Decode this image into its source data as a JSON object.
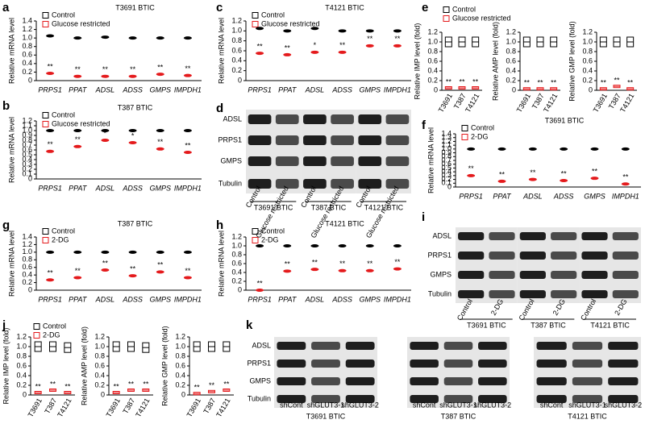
{
  "chart_data": [
    {
      "panel": "a",
      "type": "dot",
      "title": "T3691 BTIC",
      "y_label": "Relative mRNA level",
      "categories": [
        "PRPS1",
        "PPAT",
        "ADSL",
        "ADSS",
        "GMPS",
        "IMPDH1"
      ],
      "series": [
        {
          "name": "Control",
          "color": "#000000",
          "values": [
            1.05,
            1.0,
            1.02,
            1.0,
            1.0,
            1.0
          ]
        },
        {
          "name": "Glucose restricted",
          "color": "#e41a1c",
          "values": [
            0.17,
            0.1,
            0.1,
            0.1,
            0.15,
            0.12
          ]
        }
      ],
      "significance": [
        "**",
        "**",
        "**",
        "**",
        "**",
        "**"
      ],
      "ylim": [
        0,
        1.4
      ],
      "yticks": [
        0,
        0.2,
        0.4,
        0.6,
        0.8,
        {
          "value": 1,
          "label": "1.0"
        },
        1.2,
        1.4
      ]
    },
    {
      "panel": "b",
      "type": "dot",
      "title": "T387 BTIC",
      "y_label": "Relative mRNA level",
      "categories": [
        "PRPS1",
        "PPAT",
        "ADSL",
        "ADSS",
        "GMPS",
        "IMPDH1"
      ],
      "series": [
        {
          "name": "Control",
          "color": "#000000",
          "values": [
            1.0,
            1.0,
            1.0,
            1.0,
            1.0,
            1.0
          ]
        },
        {
          "name": "Glucose restricted",
          "color": "#e41a1c",
          "values": [
            0.57,
            0.67,
            0.8,
            0.75,
            0.62,
            0.55
          ]
        }
      ],
      "significance": [
        "**",
        "**",
        "*",
        "*",
        "**",
        "**"
      ],
      "ylim": [
        0,
        1.2
      ],
      "yticks": [
        0,
        0.1,
        0.2,
        0.3,
        0.4,
        0.5,
        0.6,
        0.7,
        0.8,
        0.9,
        {
          "value": 1,
          "label": "1.0"
        },
        1.1,
        1.2
      ]
    },
    {
      "panel": "c",
      "type": "dot",
      "title": "T4121 BTIC",
      "y_label": "Relative mRNA level",
      "categories": [
        "PRPS1",
        "PPAT",
        "ADSL",
        "ADSS",
        "GMPS",
        "IMPDH1"
      ],
      "series": [
        {
          "name": "Control",
          "color": "#000000",
          "values": [
            1.05,
            1.0,
            1.05,
            1.0,
            1.0,
            1.0
          ]
        },
        {
          "name": "Glucose restricted",
          "color": "#e41a1c",
          "values": [
            0.55,
            0.52,
            0.57,
            0.57,
            0.7,
            0.7
          ]
        }
      ],
      "significance": [
        "**",
        "**",
        "*",
        "**",
        "**",
        "**"
      ],
      "ylim": [
        0,
        1.2
      ],
      "yticks": [
        0,
        0.2,
        0.4,
        0.6,
        0.8,
        {
          "value": 1,
          "label": "1.0"
        },
        1.2
      ]
    },
    {
      "panel": "f",
      "type": "dot",
      "title": "T3691 BTIC",
      "y_label": "Relative mRNA level",
      "categories": [
        "PRPS1",
        "PPAT",
        "ADSL",
        "ADSS",
        "GMPS",
        "IMPDH1"
      ],
      "series": [
        {
          "name": "Control",
          "color": "#000000",
          "values": [
            1.0,
            1.0,
            1.0,
            1.0,
            1.0,
            1.0
          ]
        },
        {
          "name": "2-DG",
          "color": "#e41a1c",
          "values": [
            0.3,
            0.15,
            0.2,
            0.17,
            0.23,
            0.08
          ]
        }
      ],
      "significance": [
        "**",
        "**",
        "**",
        "**",
        "**",
        "**"
      ],
      "ylim": [
        0,
        1.4
      ],
      "yticks": [
        0,
        0.1,
        0.2,
        0.3,
        0.4,
        0.5,
        0.6,
        0.7,
        0.8,
        0.9,
        {
          "value": 1,
          "label": "1.0"
        },
        1.1,
        1.2,
        1.3,
        1.4
      ]
    },
    {
      "panel": "g",
      "type": "dot",
      "title": "T387 BTIC",
      "y_label": "Relative mRNA level",
      "categories": [
        "PRPS1",
        "PPAT",
        "ADSL",
        "ADSS",
        "GMPS",
        "IMPDH1"
      ],
      "series": [
        {
          "name": "Control",
          "color": "#000000",
          "values": [
            1.0,
            1.0,
            1.0,
            1.0,
            1.0,
            1.0
          ]
        },
        {
          "name": "2-DG",
          "color": "#e41a1c",
          "values": [
            0.27,
            0.33,
            0.53,
            0.38,
            0.48,
            0.33
          ]
        }
      ],
      "significance": [
        "**",
        "**",
        "**",
        "**",
        "**",
        "**"
      ],
      "ylim": [
        0,
        1.4
      ],
      "yticks": [
        0,
        0.2,
        0.4,
        0.6,
        0.8,
        {
          "value": 1,
          "label": "1.0"
        },
        1.2,
        1.4
      ]
    },
    {
      "panel": "h",
      "type": "dot",
      "title": "T4121 BTIC",
      "y_label": "Relative mRNA level",
      "categories": [
        "PRPS1",
        "PPAT",
        "ADSL",
        "ADSS",
        "GMPS",
        "IMPDH1"
      ],
      "series": [
        {
          "name": "Control",
          "color": "#000000",
          "values": [
            1.0,
            1.0,
            1.0,
            1.0,
            1.0,
            1.0
          ]
        },
        {
          "name": "2-DG",
          "color": "#e41a1c",
          "values": [
            0.0,
            0.43,
            0.47,
            0.44,
            0.44,
            0.48
          ]
        }
      ],
      "significance": [
        "**",
        "**",
        "**",
        "**",
        "**",
        "**"
      ],
      "ylim": [
        0,
        1.2
      ],
      "yticks": [
        0,
        0.2,
        0.4,
        0.6,
        0.8,
        {
          "value": 1,
          "label": "1.0"
        },
        1.2
      ]
    },
    {
      "panel": "e",
      "type": "box",
      "categories": [
        "T3691",
        "T387",
        "T4121"
      ],
      "series": [
        {
          "name": "Control",
          "color": "#000000"
        },
        {
          "name": "Glucose restricted",
          "color": "#e41a1c"
        }
      ],
      "plots": [
        {
          "y_label": "Relative IMP level (fold)",
          "series_values": [
            [
              1.0,
              1.0,
              1.0
            ],
            [
              0.05,
              0.05,
              0.05
            ]
          ],
          "significance": [
            "**",
            "**",
            "**"
          ]
        },
        {
          "y_label": "Relative AMP level (fold)",
          "series_values": [
            [
              1.0,
              1.0,
              1.0
            ],
            [
              0.03,
              0.03,
              0.03
            ]
          ],
          "significance": [
            "**",
            "**",
            "**"
          ]
        },
        {
          "y_label": "Relative GMP level (fold)",
          "series_values": [
            [
              1.0,
              1.0,
              1.0
            ],
            [
              0.03,
              0.08,
              0.03
            ]
          ],
          "significance": [
            "**",
            "**",
            "**"
          ]
        }
      ],
      "ylim": [
        0,
        1.2
      ],
      "yticks": [
        0,
        0.2,
        0.4,
        0.6,
        0.8,
        {
          "value": 1,
          "label": "1.0"
        },
        1.2
      ]
    },
    {
      "panel": "j",
      "type": "box",
      "categories": [
        "T3691",
        "T387",
        "T4121"
      ],
      "series": [
        {
          "name": "Control",
          "color": "#000000"
        },
        {
          "name": "2-DG",
          "color": "#e41a1c"
        }
      ],
      "plots": [
        {
          "y_label": "Relative IMP level (fold)",
          "series_values": [
            [
              1.0,
              1.0,
              0.98
            ],
            [
              0.05,
              0.1,
              0.05
            ]
          ],
          "significance": [
            "**",
            "**",
            "**"
          ]
        },
        {
          "y_label": "Relative AMP level (fold)",
          "series_values": [
            [
              1.0,
              1.0,
              0.98
            ],
            [
              0.05,
              0.1,
              0.1
            ]
          ],
          "significance": [
            "**",
            "**",
            "**"
          ]
        },
        {
          "y_label": "Relative GMP level (fold)",
          "series_values": [
            [
              1.0,
              1.0,
              1.0
            ],
            [
              0.03,
              0.07,
              0.1
            ]
          ],
          "significance": [
            "**",
            "**",
            "**"
          ]
        }
      ],
      "ylim": [
        0,
        1.2
      ],
      "yticks": [
        0,
        0.2,
        0.4,
        0.6,
        0.8,
        {
          "value": 1,
          "label": "1.0"
        },
        1.2
      ]
    }
  ],
  "blots": [
    {
      "panel": "d",
      "rows": [
        "ADSL",
        "PRPS1",
        "GMPS",
        "Tubulin"
      ],
      "lanes": [
        "Control",
        "Glucose restricted"
      ],
      "groups": [
        "T3691 BTIC",
        "T387 BTIC",
        "T4121 BTIC"
      ]
    },
    {
      "panel": "i",
      "rows": [
        "ADSL",
        "PRPS1",
        "GMPS",
        "Tubulin"
      ],
      "lanes": [
        "Control",
        "2-DG"
      ],
      "groups": [
        "T3691 BTIC",
        "T387 BTIC",
        "T4121 BTIC"
      ]
    },
    {
      "panel": "k",
      "rows": [
        "ADSL",
        "PRPS1",
        "GMPS",
        "Tubulin"
      ],
      "lanes": [
        "shCont",
        "shGLUT3-1",
        "shGLUT3-2"
      ],
      "groups": [
        "T3691 BTIC",
        "T387 BTIC",
        "T4121 BTIC"
      ]
    }
  ]
}
